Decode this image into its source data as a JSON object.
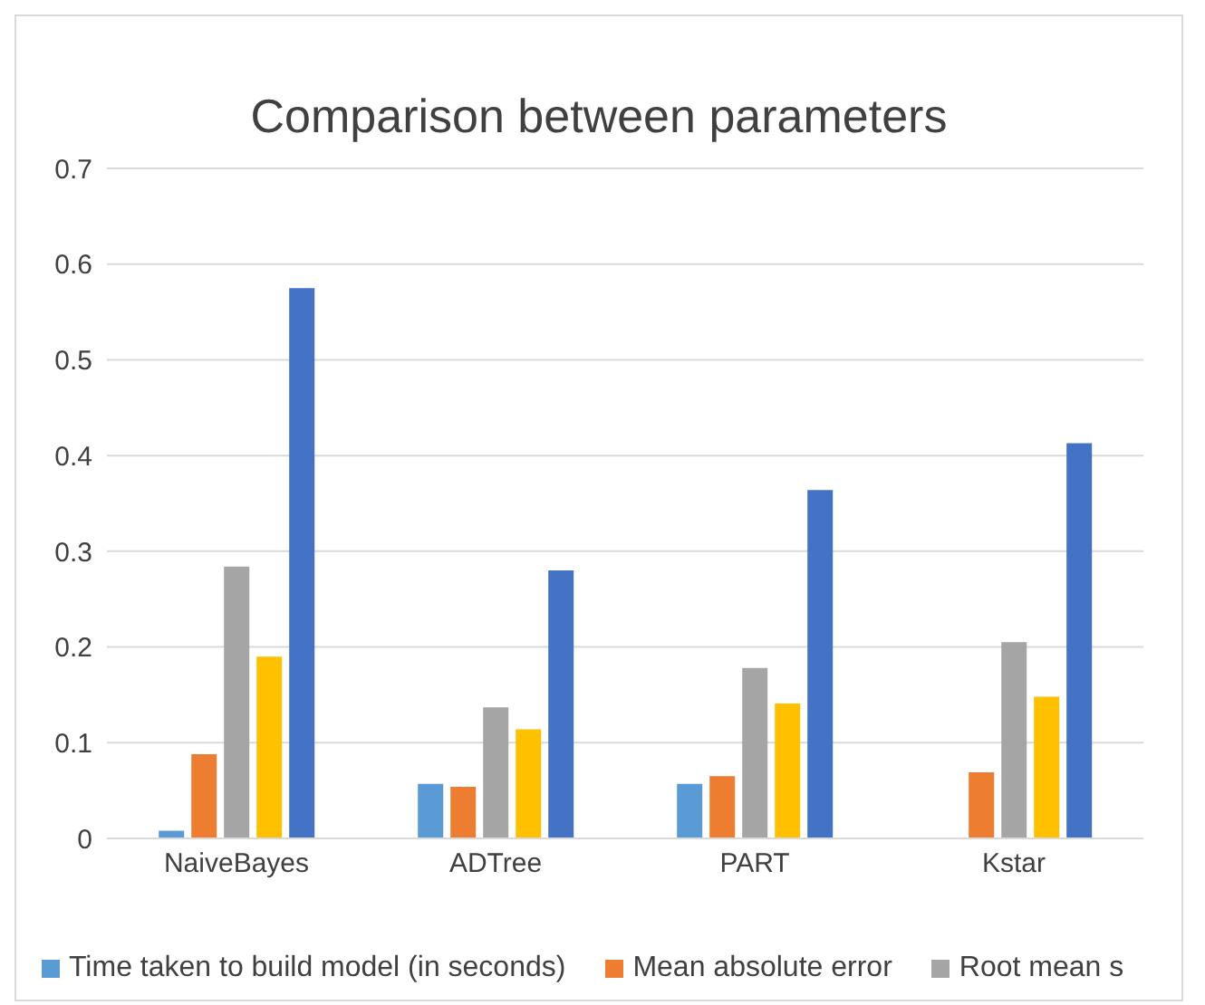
{
  "chart_data": {
    "type": "bar",
    "title": "Comparison between parameters",
    "categories": [
      "NaiveBayes",
      "ADTree",
      "PART",
      "Kstar"
    ],
    "series": [
      {
        "name": "Time taken to build model (in seconds)",
        "color": "#5b9bd5",
        "values": [
          0.008,
          0.057,
          0.057,
          null
        ]
      },
      {
        "name": "Mean absolute error",
        "color": "#ed7d31",
        "values": [
          0.088,
          0.054,
          0.065,
          0.069
        ]
      },
      {
        "name": "Root mean s",
        "color": "#a5a5a5",
        "values": [
          0.284,
          0.137,
          0.178,
          0.205
        ]
      },
      {
        "color": "#ffc000",
        "values": [
          0.19,
          0.114,
          0.141,
          0.148
        ]
      },
      {
        "color": "#4472c4",
        "values": [
          0.575,
          0.28,
          0.364,
          0.413
        ]
      }
    ],
    "ylim": [
      0,
      0.7
    ],
    "yticks": [
      0,
      0.1,
      0.2,
      0.3,
      0.4,
      0.5,
      0.6,
      0.7
    ],
    "grid": "y",
    "legend": "bottom"
  }
}
